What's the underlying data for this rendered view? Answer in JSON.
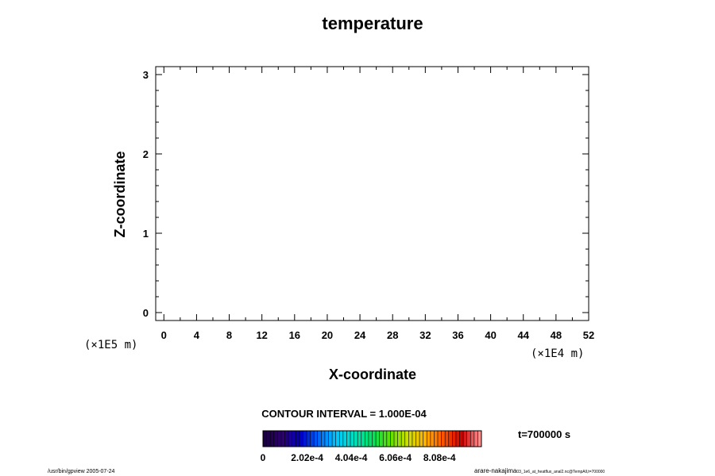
{
  "chart_data": {
    "type": "heatmap",
    "title": "temperature",
    "xlabel": "X-coordinate",
    "ylabel": "Z-coordinate",
    "x_ticks": [
      "0",
      "4",
      "8",
      "12",
      "16",
      "20",
      "24",
      "28",
      "32",
      "36",
      "40",
      "44",
      "48",
      "52"
    ],
    "y_ticks": [
      "0",
      "1",
      "2",
      "3"
    ],
    "xlim": [
      -1,
      52
    ],
    "ylim": [
      -0.1,
      3.1
    ],
    "x_scale_label": "(×1E4 m)",
    "y_scale_label": "(×1E5 m)",
    "contour_interval": "CONTOUR INTERVAL = 1.000E-04",
    "time_label": "t=700000 s",
    "colorbar_ticks": [
      "0",
      "2.02e-4",
      "4.04e-4",
      "6.06e-4",
      "8.08e-4"
    ],
    "colorbar_range": [
      0,
      0.001
    ],
    "colormap": [
      "#1a0040",
      "#2d006e",
      "#0000c8",
      "#0064ff",
      "#00c8ff",
      "#00e0c0",
      "#00e060",
      "#60e000",
      "#d0e000",
      "#ffb000",
      "#ff5000",
      "#d00000",
      "#ff9090"
    ],
    "colorbar_bins": 60,
    "data": []
  },
  "footer": {
    "left": "/usr/bin/gpview 2005-07-24",
    "right": "arare-nakajima",
    "right_small": "03_1e6_at_heatflux_anal2.nc@TempAll,t=700000"
  }
}
